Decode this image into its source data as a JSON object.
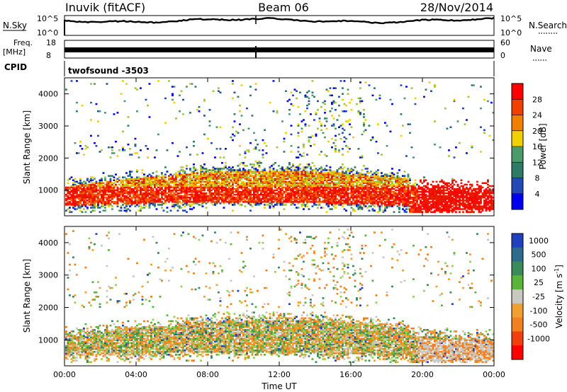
{
  "header": {
    "station": "Inuvik (fitACF)",
    "beam": "Beam 06",
    "date": "28/Nov/2014"
  },
  "strips": {
    "nsky_label": "N.Sky",
    "nsky_ticks": [
      "10^5",
      "10^0"
    ],
    "nsearch_label": "N.Search",
    "nsearch_ticks": [
      "10^5",
      "10^0"
    ],
    "freq_label": "Freq.",
    "freq_unit": "[MHz]",
    "freq_ticks": [
      "18",
      "8"
    ],
    "nave_label": "Nave",
    "nave_ticks": [
      "60",
      "0"
    ],
    "cpid_label": "CPID",
    "cpid_value": "twofsound -3503"
  },
  "colors": {
    "power_scale": [
      "#0000f0",
      "#2448b4",
      "#2e7a66",
      "#4a9a6a",
      "#9ec83c",
      "#f0d000",
      "#f0a000",
      "#f06000",
      "#e02000",
      "#ff0000"
    ],
    "velocity_scale": [
      "#2040c0",
      "#2e6a8c",
      "#3a8a5a",
      "#5ab43a",
      "#96d050",
      "#c8c8c0",
      "#f0a030",
      "#f08020",
      "#f04010",
      "#ff0000"
    ]
  },
  "chart_data": [
    {
      "type": "heatmap",
      "name": "power",
      "xlabel": "",
      "ylabel": "Slant Range [km]",
      "ylim": [
        200,
        4500
      ],
      "y_ticks": [
        1000,
        2000,
        3000,
        4000
      ],
      "colorbar": {
        "label": "Power [dB]",
        "range": [
          0,
          32
        ],
        "ticks": [
          4,
          8,
          12,
          16,
          20,
          24,
          28
        ]
      }
    },
    {
      "type": "heatmap",
      "name": "velocity",
      "xlabel": "Time UT",
      "ylabel": "Slant Range [km]",
      "ylim": [
        200,
        4500
      ],
      "y_ticks": [
        1000,
        2000,
        3000,
        4000
      ],
      "x_ticks": [
        "00:00",
        "04:00",
        "08:00",
        "12:00",
        "16:00",
        "20:00",
        "00:00"
      ],
      "colorbar": {
        "label": "Velocity [m s",
        "label_sup": "-1",
        "label_end": "]",
        "ticks": [
          "1000",
          "500",
          "100",
          "25",
          "-25",
          "-100",
          "-500",
          "-1000"
        ]
      }
    }
  ]
}
